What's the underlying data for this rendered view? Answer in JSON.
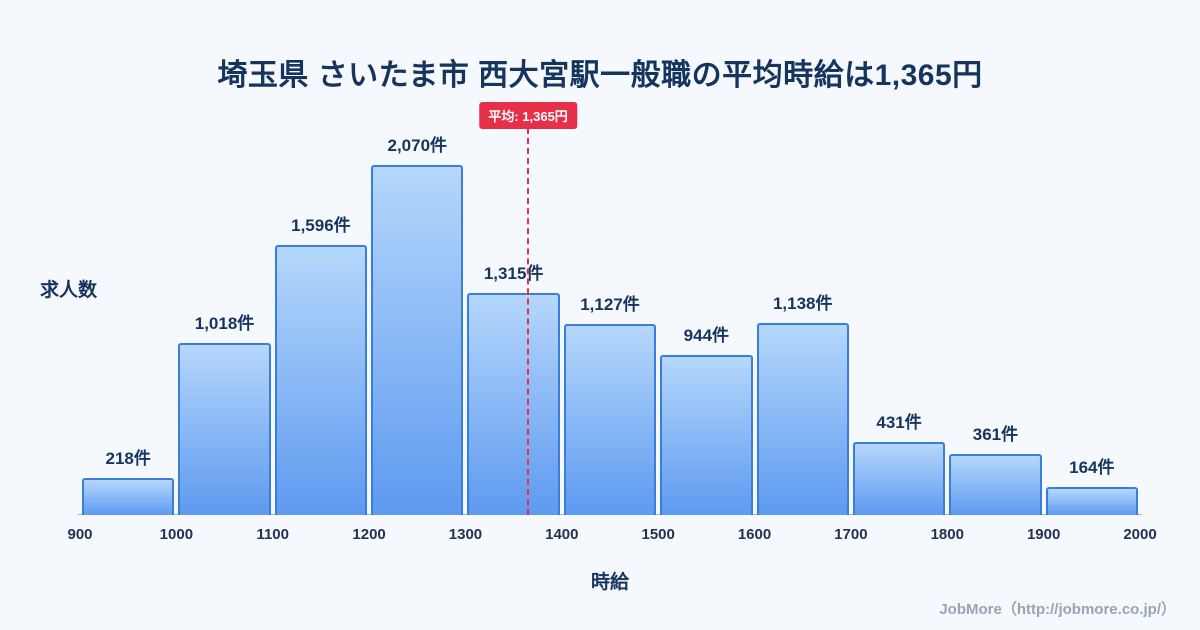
{
  "title": "埼玉県 さいたま市 西大宮駅一般職の平均時給は1,365円",
  "average_label": "平均: 1,365円",
  "footer": "JobMore（http://jobmore.co.jp/）",
  "colors": {
    "background": "#f5f8fd",
    "title_text": "#16355e",
    "bar_fill_top": "#b5d7fb",
    "bar_fill_bottom": "#5e9af0",
    "bar_border": "#3a7ddd",
    "average_red": "#e6304a"
  },
  "chart_data": {
    "type": "bar",
    "title": "埼玉県 さいたま市 西大宮駅一般職の平均時給は1,365円",
    "xlabel": "時給",
    "ylabel": "求人数",
    "bin_edges": [
      900,
      1000,
      1100,
      1200,
      1300,
      1400,
      1500,
      1600,
      1700,
      1800,
      1900,
      2000
    ],
    "tick_labels": [
      "900",
      "1000",
      "1100",
      "1200",
      "1300",
      "1400",
      "1500",
      "1600",
      "1700",
      "1800",
      "1900",
      "2000"
    ],
    "values": [
      218,
      1018,
      1596,
      2070,
      1315,
      1127,
      944,
      1138,
      431,
      361,
      164
    ],
    "value_labels": [
      "218件",
      "1,018件",
      "1,596件",
      "2,070件",
      "1,315件",
      "1,127件",
      "944件",
      "1,138件",
      "431件",
      "361件",
      "164件"
    ],
    "average": 1365,
    "ylim": [
      0,
      2200
    ],
    "grid": false,
    "legend": "none"
  }
}
